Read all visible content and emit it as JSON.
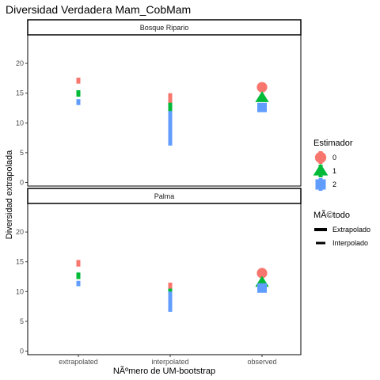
{
  "chart_data": {
    "type": "scatter",
    "title": "Diversidad Verdadera Mam_CobMam",
    "xlabel": "NÃºmero de UM-bootstrap",
    "ylabel": "Diversidad extrapolada",
    "categories": [
      "extrapolated",
      "interpolated",
      "observed"
    ],
    "yticks": [
      0,
      5,
      10,
      15,
      20
    ],
    "ylim": [
      -0.6,
      24.8
    ],
    "grid": false,
    "legend_placement": "right",
    "legends": [
      {
        "title": "Estimador",
        "entries": [
          {
            "label": "0",
            "color": "#F8766D",
            "shape": "circle"
          },
          {
            "label": "1",
            "color": "#00BA38",
            "shape": "triangle"
          },
          {
            "label": "2",
            "color": "#619CFF",
            "shape": "square"
          }
        ]
      },
      {
        "title": "MÃ©todo",
        "entries": [
          {
            "label": "Extrapolado",
            "line": "thick"
          },
          {
            "label": "Interpolado",
            "line": "thin"
          }
        ]
      }
    ],
    "panels": [
      {
        "name": "Bosque Ripario",
        "ranges": [
          {
            "category": "extrapolated",
            "estimator": "0",
            "low": 16.6,
            "high": 17.6
          },
          {
            "category": "extrapolated",
            "estimator": "1",
            "low": 14.4,
            "high": 15.5
          },
          {
            "category": "extrapolated",
            "estimator": "2",
            "low": 13.0,
            "high": 14.0
          },
          {
            "category": "interpolated",
            "estimator": "0",
            "low": 12.5,
            "high": 15.0
          },
          {
            "category": "interpolated",
            "estimator": "1",
            "low": 11.8,
            "high": 13.4
          },
          {
            "category": "interpolated",
            "estimator": "2",
            "low": 6.2,
            "high": 12.0
          }
        ],
        "points": [
          {
            "category": "observed",
            "estimator": "0",
            "value": 16.0
          },
          {
            "category": "observed",
            "estimator": "1",
            "value": 14.2
          },
          {
            "category": "observed",
            "estimator": "2",
            "value": 12.6
          }
        ]
      },
      {
        "name": "Palma",
        "ranges": [
          {
            "category": "extrapolated",
            "estimator": "0",
            "low": 14.2,
            "high": 15.3
          },
          {
            "category": "extrapolated",
            "estimator": "1",
            "low": 12.1,
            "high": 13.2
          },
          {
            "category": "extrapolated",
            "estimator": "2",
            "low": 10.9,
            "high": 11.8
          },
          {
            "category": "interpolated",
            "estimator": "0",
            "low": 10.4,
            "high": 11.5
          },
          {
            "category": "interpolated",
            "estimator": "1",
            "low": 9.8,
            "high": 10.5
          },
          {
            "category": "interpolated",
            "estimator": "2",
            "low": 6.6,
            "high": 10.0
          }
        ],
        "points": [
          {
            "category": "observed",
            "estimator": "0",
            "value": 13.1
          },
          {
            "category": "observed",
            "estimator": "1",
            "value": 11.5
          },
          {
            "category": "observed",
            "estimator": "2",
            "value": 10.6
          }
        ]
      }
    ]
  }
}
